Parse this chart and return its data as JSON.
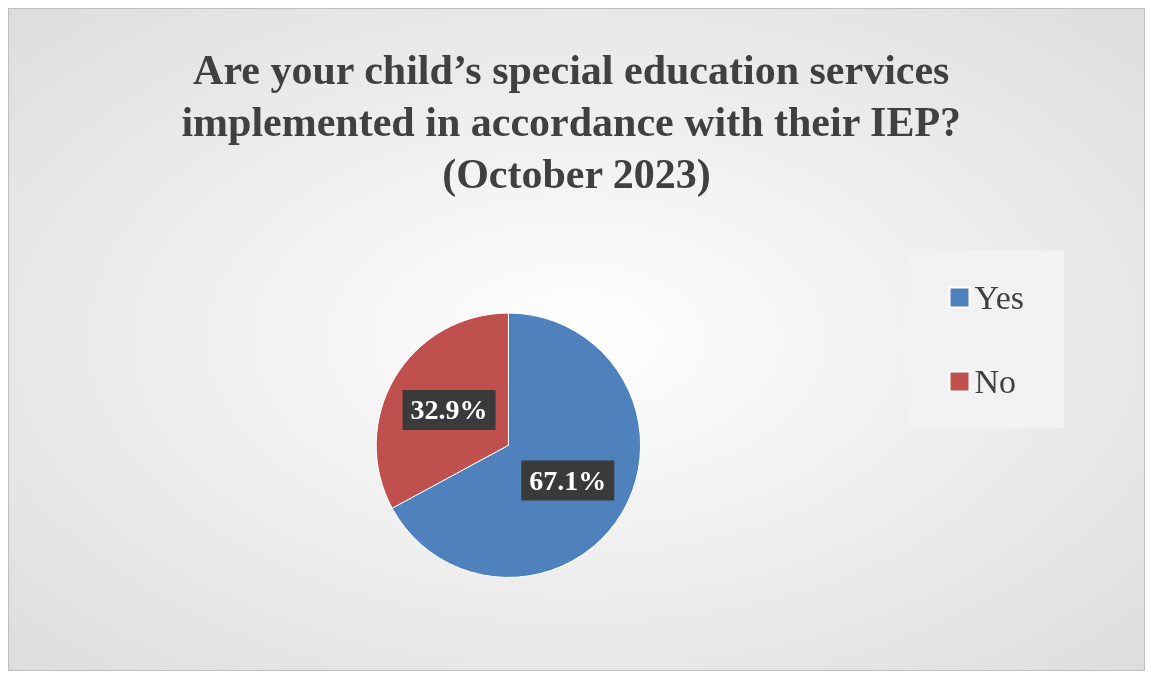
{
  "chart_data": {
    "type": "pie",
    "title": "Are your child’s special education services implemented in accordance with their IEP? (October 2023)",
    "categories": [
      "Yes",
      "No"
    ],
    "values": [
      67.1,
      32.9
    ],
    "colors": [
      "#4f81bd",
      "#c0504d"
    ],
    "value_labels": [
      "67.1%",
      "32.9%"
    ],
    "legend": "right"
  }
}
